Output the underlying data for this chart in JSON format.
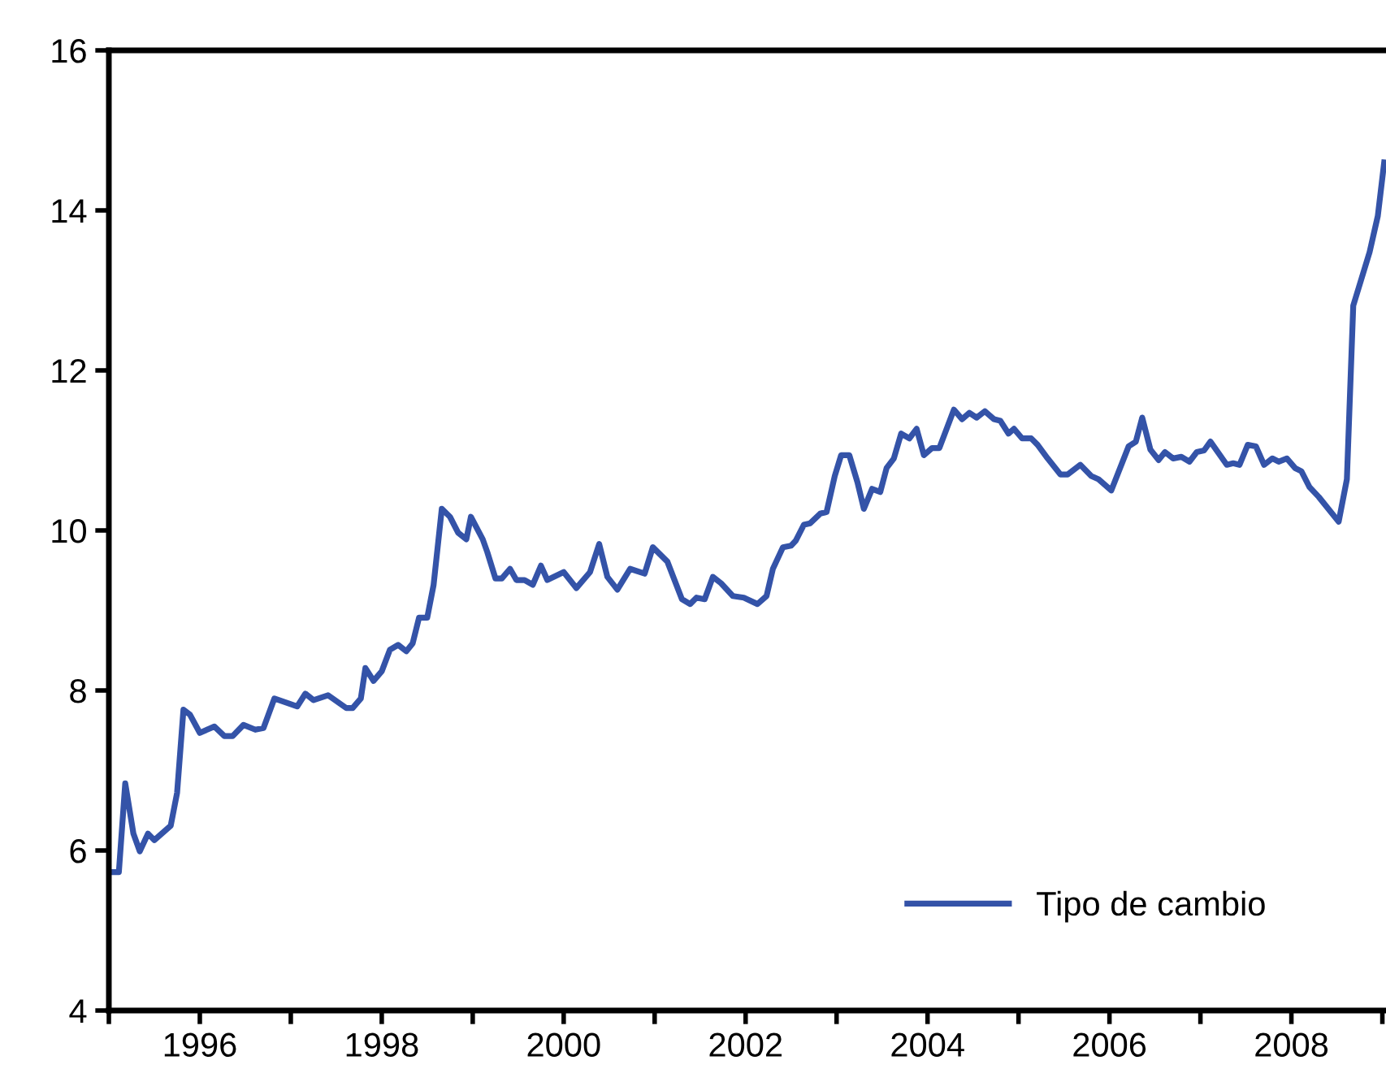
{
  "chart_data": {
    "type": "line",
    "x": [
      1995.02,
      1995.11,
      1995.18,
      1995.27,
      1995.34,
      1995.43,
      1995.5,
      1995.68,
      1995.75,
      1995.82,
      1995.89,
      1996.0,
      1996.16,
      1996.27,
      1996.36,
      1996.48,
      1996.61,
      1996.7,
      1996.82,
      1997.07,
      1997.16,
      1997.25,
      1997.41,
      1997.61,
      1997.68,
      1997.77,
      1997.82,
      1997.91,
      1998.0,
      1998.09,
      1998.18,
      1998.27,
      1998.34,
      1998.41,
      1998.5,
      1998.57,
      1998.66,
      1998.75,
      1998.84,
      1998.93,
      1998.98,
      1999.11,
      1999.16,
      1999.25,
      1999.32,
      1999.41,
      1999.48,
      1999.57,
      1999.66,
      1999.75,
      1999.82,
      2000.0,
      2000.14,
      2000.29,
      2000.39,
      2000.48,
      2000.59,
      2000.73,
      2000.89,
      2000.98,
      2001.14,
      2001.3,
      2001.39,
      2001.46,
      2001.55,
      2001.64,
      2001.73,
      2001.86,
      2001.98,
      2002.13,
      2002.23,
      2002.3,
      2002.41,
      2002.5,
      2002.55,
      2002.64,
      2002.71,
      2002.82,
      2002.89,
      2002.98,
      2003.05,
      2003.14,
      2003.23,
      2003.3,
      2003.39,
      2003.48,
      2003.55,
      2003.63,
      2003.71,
      2003.8,
      2003.88,
      2003.96,
      2004.05,
      2004.13,
      2004.29,
      2004.38,
      2004.46,
      2004.54,
      2004.63,
      2004.73,
      2004.8,
      2004.89,
      2004.95,
      2005.04,
      2005.14,
      2005.21,
      2005.32,
      2005.46,
      2005.54,
      2005.68,
      2005.8,
      2005.88,
      2006.02,
      2006.21,
      2006.29,
      2006.36,
      2006.45,
      2006.54,
      2006.61,
      2006.7,
      2006.79,
      2006.88,
      2006.96,
      2007.04,
      2007.11,
      2007.29,
      2007.36,
      2007.43,
      2007.52,
      2007.61,
      2007.7,
      2007.79,
      2007.86,
      2007.95,
      2008.04,
      2008.11,
      2008.2,
      2008.3,
      2008.52,
      2008.61,
      2008.68,
      2008.86,
      2008.95,
      2009.02
    ],
    "series": [
      {
        "name": "Tipo de cambio",
        "color": "#3453a8",
        "values": [
          5.73,
          5.73,
          6.84,
          6.21,
          5.99,
          6.21,
          6.13,
          6.31,
          6.72,
          7.76,
          7.7,
          7.47,
          7.55,
          7.43,
          7.43,
          7.57,
          7.51,
          7.53,
          7.9,
          7.8,
          7.96,
          7.88,
          7.94,
          7.78,
          7.78,
          7.9,
          8.28,
          8.12,
          8.24,
          8.51,
          8.57,
          8.49,
          8.59,
          8.91,
          8.91,
          9.32,
          10.27,
          10.17,
          9.97,
          9.89,
          10.17,
          9.89,
          9.73,
          9.4,
          9.4,
          9.52,
          9.38,
          9.38,
          9.32,
          9.56,
          9.38,
          9.48,
          9.28,
          9.48,
          9.83,
          9.42,
          9.26,
          9.52,
          9.46,
          9.79,
          9.61,
          9.14,
          9.08,
          9.16,
          9.14,
          9.42,
          9.34,
          9.18,
          9.16,
          9.08,
          9.18,
          9.52,
          9.79,
          9.81,
          9.87,
          10.07,
          10.09,
          10.21,
          10.23,
          10.68,
          10.94,
          10.94,
          10.6,
          10.27,
          10.52,
          10.48,
          10.78,
          10.9,
          11.21,
          11.15,
          11.27,
          10.94,
          11.03,
          11.03,
          11.51,
          11.39,
          11.47,
          11.41,
          11.49,
          11.39,
          11.37,
          11.21,
          11.27,
          11.15,
          11.15,
          11.07,
          10.9,
          10.7,
          10.7,
          10.82,
          10.68,
          10.64,
          10.5,
          11.05,
          11.11,
          11.41,
          11.01,
          10.88,
          10.98,
          10.9,
          10.92,
          10.86,
          10.98,
          11.0,
          11.11,
          10.82,
          10.84,
          10.82,
          11.07,
          11.05,
          10.82,
          10.9,
          10.86,
          10.9,
          10.78,
          10.74,
          10.54,
          10.42,
          10.11,
          10.64,
          12.81,
          13.48,
          13.93,
          14.6
        ]
      }
    ],
    "xlim": [
      1995,
      2009.04
    ],
    "xticks": [
      {
        "value": 1995,
        "label": null
      },
      1996,
      {
        "value": 1997,
        "label": null
      },
      1998,
      {
        "value": 1999,
        "label": null
      },
      2000,
      {
        "value": 2001,
        "label": null
      },
      2002,
      {
        "value": 2003,
        "label": null
      },
      2004,
      {
        "value": 2005,
        "label": null
      },
      2006,
      {
        "value": 2007,
        "label": null
      },
      2008,
      {
        "value": 2009,
        "label": null
      }
    ],
    "ylim": [
      4,
      16
    ],
    "yticks": [
      4,
      6,
      8,
      10,
      12,
      14,
      16
    ],
    "grid": false,
    "legend": "bottom right",
    "line_style": "solid",
    "marker": "none"
  }
}
